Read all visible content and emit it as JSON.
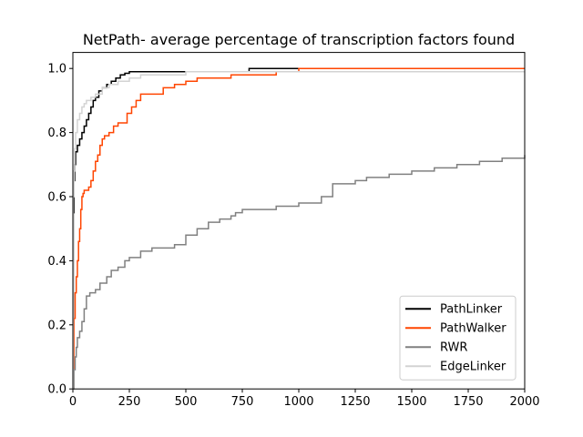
{
  "chart_data": {
    "type": "line",
    "title": "NetPath- average percentage of transcription factors found",
    "xlabel": "",
    "ylabel": "",
    "xlim": [
      0,
      2000
    ],
    "ylim": [
      0,
      1.05
    ],
    "xticks": [
      0,
      250,
      500,
      750,
      1000,
      1250,
      1500,
      1750,
      2000
    ],
    "xtick_labels": [
      "0",
      "250",
      "500",
      "750",
      "1000",
      "1250",
      "1500",
      "1750",
      "2000"
    ],
    "yticks": [
      0.0,
      0.2,
      0.4,
      0.6,
      0.8,
      1.0
    ],
    "ytick_labels": [
      "0.0",
      "0.2",
      "0.4",
      "0.6",
      "0.8",
      "1.0"
    ],
    "grid": false,
    "legend_position": "bottom-right",
    "step": true,
    "series": [
      {
        "name": "PathLinker",
        "color": "#000000",
        "x": [
          0,
          2,
          5,
          8,
          12,
          20,
          30,
          40,
          50,
          60,
          70,
          80,
          90,
          100,
          115,
          130,
          150,
          170,
          190,
          210,
          230,
          250,
          300,
          400,
          500,
          780,
          2000
        ],
        "y": [
          0.0,
          0.55,
          0.65,
          0.7,
          0.74,
          0.76,
          0.78,
          0.8,
          0.82,
          0.84,
          0.86,
          0.88,
          0.9,
          0.91,
          0.93,
          0.94,
          0.95,
          0.96,
          0.97,
          0.98,
          0.985,
          0.99,
          0.99,
          0.99,
          0.99,
          1.0,
          1.0
        ]
      },
      {
        "name": "PathWalker",
        "color": "#ff4500",
        "x": [
          0,
          5,
          10,
          15,
          20,
          25,
          30,
          35,
          40,
          45,
          50,
          60,
          70,
          80,
          90,
          100,
          110,
          120,
          130,
          140,
          160,
          180,
          200,
          220,
          240,
          260,
          280,
          300,
          350,
          400,
          450,
          500,
          550,
          600,
          700,
          800,
          900,
          1000,
          2000
        ],
        "y": [
          0.0,
          0.22,
          0.3,
          0.35,
          0.4,
          0.46,
          0.5,
          0.56,
          0.6,
          0.61,
          0.62,
          0.62,
          0.63,
          0.65,
          0.68,
          0.71,
          0.73,
          0.76,
          0.78,
          0.79,
          0.8,
          0.82,
          0.83,
          0.83,
          0.86,
          0.88,
          0.9,
          0.92,
          0.92,
          0.94,
          0.95,
          0.96,
          0.97,
          0.97,
          0.98,
          0.98,
          0.99,
          1.0,
          1.0
        ]
      },
      {
        "name": "RWR",
        "color": "#808080",
        "x": [
          0,
          5,
          10,
          15,
          20,
          30,
          40,
          50,
          60,
          75,
          100,
          120,
          150,
          170,
          200,
          230,
          250,
          300,
          350,
          450,
          500,
          550,
          600,
          650,
          700,
          720,
          750,
          800,
          900,
          1000,
          1100,
          1150,
          1250,
          1300,
          1350,
          1400,
          1450,
          1500,
          1550,
          1600,
          1650,
          1700,
          1750,
          1800,
          1850,
          1900,
          1950,
          2000
        ],
        "y": [
          0.0,
          0.06,
          0.1,
          0.13,
          0.16,
          0.18,
          0.21,
          0.25,
          0.29,
          0.3,
          0.31,
          0.33,
          0.35,
          0.37,
          0.38,
          0.4,
          0.41,
          0.43,
          0.44,
          0.45,
          0.48,
          0.5,
          0.52,
          0.53,
          0.54,
          0.55,
          0.56,
          0.56,
          0.57,
          0.58,
          0.6,
          0.64,
          0.65,
          0.66,
          0.66,
          0.67,
          0.67,
          0.68,
          0.68,
          0.69,
          0.69,
          0.7,
          0.7,
          0.71,
          0.71,
          0.72,
          0.72,
          0.73
        ]
      },
      {
        "name": "EdgeLinker",
        "color": "#d3d3d3",
        "x": [
          0,
          2,
          5,
          8,
          12,
          20,
          30,
          40,
          50,
          60,
          80,
          100,
          130,
          160,
          200,
          250,
          300,
          400,
          500,
          800,
          2000
        ],
        "y": [
          0.0,
          0.6,
          0.68,
          0.75,
          0.8,
          0.84,
          0.86,
          0.88,
          0.89,
          0.9,
          0.91,
          0.92,
          0.94,
          0.95,
          0.96,
          0.97,
          0.98,
          0.98,
          0.99,
          0.99,
          0.99
        ]
      }
    ]
  }
}
